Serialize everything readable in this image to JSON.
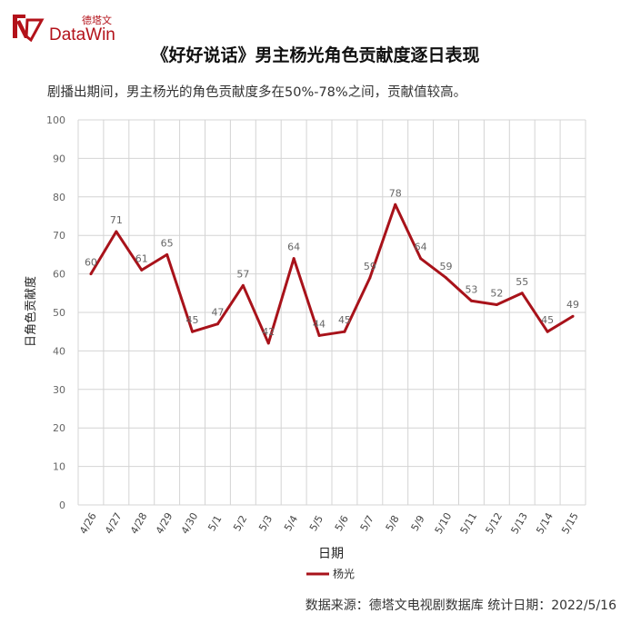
{
  "logo": {
    "cn": "德塔文",
    "en": "DataWin"
  },
  "title": "《好好说话》男主杨光角色贡献度逐日表现",
  "subtitle": "剧播出期间，男主杨光的角色贡献度多在50%-78%之间，贡献值较高。",
  "footer": "数据来源：德塔文电视剧数据库   统计日期：2022/5/16",
  "colors": {
    "line": "#a8121a",
    "brand": "#b3121a",
    "grid": "#d4d4d4",
    "label": "#666666"
  },
  "chart_data": {
    "type": "line",
    "xlabel": "日期",
    "ylabel": "日角色贡献度",
    "ylim": [
      0,
      100
    ],
    "yticks": [
      0,
      10,
      20,
      30,
      40,
      50,
      60,
      70,
      80,
      90,
      100
    ],
    "categories": [
      "4/26",
      "4/27",
      "4/28",
      "4/29",
      "4/30",
      "5/1",
      "5/2",
      "5/3",
      "5/4",
      "5/5",
      "5/6",
      "5/7",
      "5/8",
      "5/9",
      "5/10",
      "5/11",
      "5/12",
      "5/13",
      "5/14",
      "5/15"
    ],
    "series": [
      {
        "name": "杨光",
        "values": [
          60,
          71,
          61,
          65,
          45,
          47,
          57,
          42,
          64,
          44,
          45,
          59,
          78,
          64,
          59,
          53,
          52,
          55,
          45,
          49
        ]
      }
    ],
    "grid": true,
    "legend": "bottom"
  }
}
